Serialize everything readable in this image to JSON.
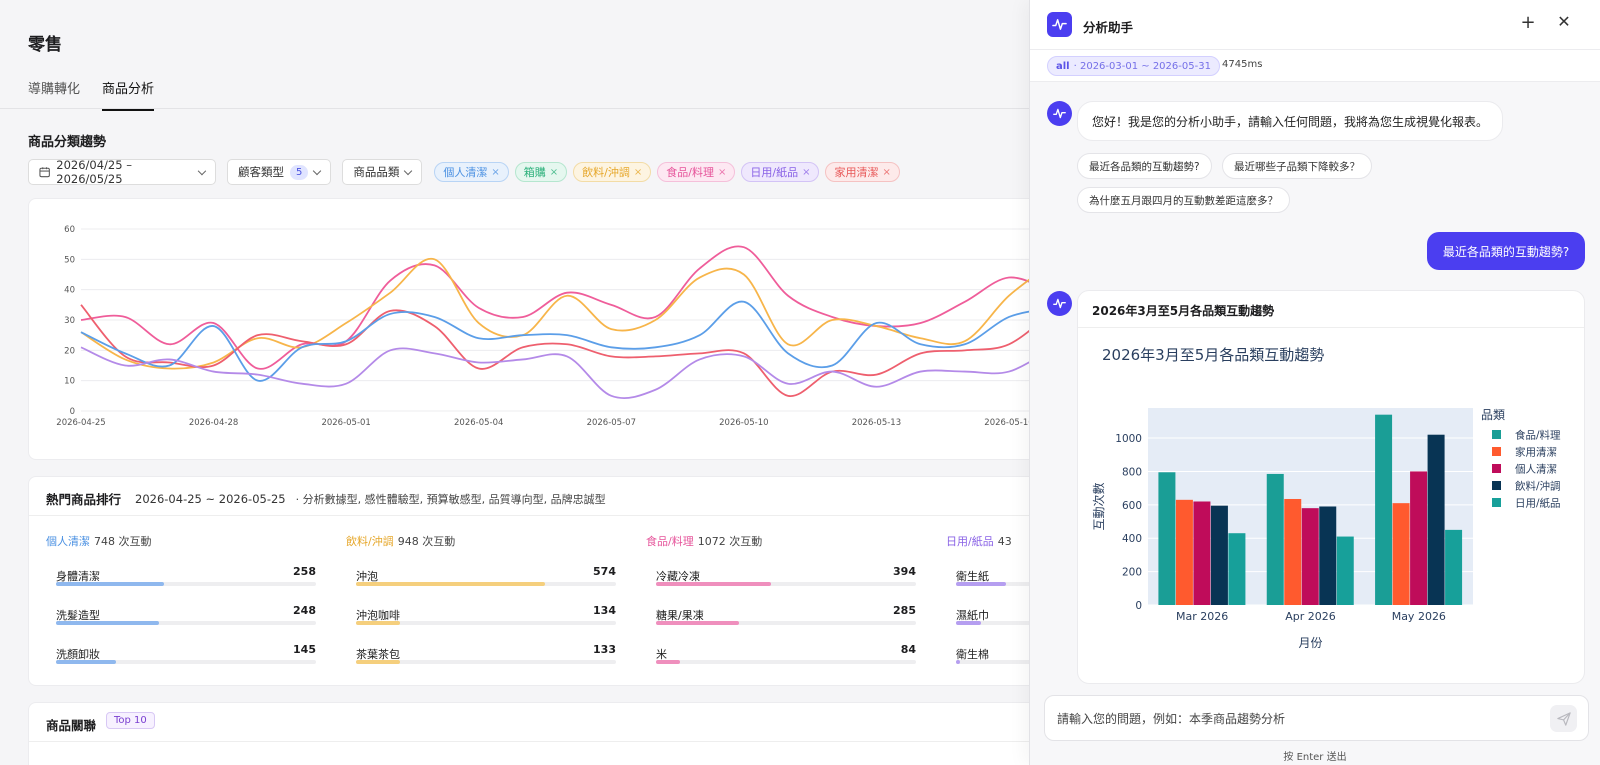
{
  "page": {
    "title": "零售",
    "tabs": [
      {
        "label": "導購轉化"
      },
      {
        "label": "商品分析",
        "active": true
      }
    ],
    "section_title": "商品分類趨勢"
  },
  "filters": {
    "date_range": "2026/04/25 – 2026/05/25",
    "customer_type_label": "顧客類型",
    "customer_type_count": "5",
    "category_label": "商品品類",
    "chips": [
      {
        "label": "個人清潔",
        "color": "#4a90e2",
        "bg": "#e8f1fc",
        "border": "#b8d4f5"
      },
      {
        "label": "箱購",
        "color": "#2bb07a",
        "bg": "#e5f7ef",
        "border": "#b5e6cf"
      },
      {
        "label": "飲料/沖調",
        "color": "#e6a72a",
        "bg": "#fdf4e1",
        "border": "#f3dca6"
      },
      {
        "label": "食品/料理",
        "color": "#e6559b",
        "bg": "#fde8f2",
        "border": "#f5c0da"
      },
      {
        "label": "日用/紙品",
        "color": "#8a63e6",
        "bg": "#efe8fd",
        "border": "#d3c3f6"
      },
      {
        "label": "家用清潔",
        "color": "#e85858",
        "bg": "#fdeaea",
        "border": "#f5c2c2"
      }
    ]
  },
  "trend_chart": {
    "type": "line",
    "x": [
      "2026-04-25",
      "2026-04-26",
      "2026-04-27",
      "2026-04-28",
      "2026-04-29",
      "2026-04-30",
      "2026-05-01",
      "2026-05-02",
      "2026-05-03",
      "2026-05-04",
      "2026-05-05",
      "2026-05-06",
      "2026-05-07",
      "2026-05-08",
      "2026-05-09",
      "2026-05-10",
      "2026-05-11",
      "2026-05-12",
      "2026-05-13",
      "2026-05-14",
      "2026-05-15",
      "2026-05-16",
      "2026-05-17"
    ],
    "x_ticks": [
      "2026-04-25",
      "2026-04-28",
      "2026-05-01",
      "2026-05-04",
      "2026-05-07",
      "2026-05-10",
      "2026-05-13",
      "2026-05-16"
    ],
    "y_ticks": [
      0,
      10,
      20,
      30,
      40,
      50,
      60
    ],
    "ylim": [
      0,
      60
    ],
    "series": [
      {
        "color": "#ef5d9a",
        "values": [
          30,
          31,
          22,
          29,
          14,
          22,
          23,
          43,
          48,
          34,
          31,
          39,
          35,
          31,
          47,
          54,
          38,
          31,
          28,
          29,
          36,
          44,
          39
        ]
      },
      {
        "color": "#f7b54a",
        "values": [
          26,
          17,
          14,
          16,
          24,
          21,
          29,
          39,
          50,
          29,
          25,
          38,
          27,
          30,
          44,
          45,
          22,
          30,
          28,
          24,
          23,
          38,
          49
        ]
      },
      {
        "color": "#ee5f6e",
        "values": [
          35,
          18,
          16,
          15,
          25,
          23,
          22,
          33,
          28,
          14,
          21,
          22,
          18,
          18,
          19,
          19,
          5,
          13,
          12,
          19,
          20,
          22,
          33
        ]
      },
      {
        "color": "#5b9ee8",
        "values": [
          26,
          19,
          15,
          28,
          10,
          21,
          23,
          32,
          31,
          24,
          25,
          25,
          21,
          21,
          25,
          36,
          19,
          15,
          29,
          22,
          22,
          31,
          34
        ]
      },
      {
        "color": "#b48ae8",
        "values": [
          21,
          15,
          17,
          13,
          12,
          9,
          9,
          20,
          19,
          16,
          17,
          18,
          5,
          7,
          17,
          18,
          9,
          13,
          8,
          13,
          13,
          13,
          21
        ]
      }
    ]
  },
  "ranking": {
    "title": "熱門商品排行",
    "range": "2026-04-25 ~ 2026-05-25",
    "segments": "· 分析數據型, 感性體驗型, 預算敏感型, 品質導向型, 品牌忠誠型",
    "columns": [
      {
        "name": "個人清潔",
        "color": "#4a90e2",
        "bar": "#8fb8ee",
        "total": "748 次互動",
        "items": [
          {
            "name": "身體清潔",
            "value": 258
          },
          {
            "name": "洗髮造型",
            "value": 248
          },
          {
            "name": "洗顏卸妝",
            "value": 145
          }
        ]
      },
      {
        "name": "飲料/沖調",
        "color": "#e6a72a",
        "bar": "#f5cf7d",
        "total": "948 次互動",
        "items": [
          {
            "name": "沖泡",
            "value": 574
          },
          {
            "name": "沖泡咖啡",
            "value": 134
          },
          {
            "name": "茶葉茶包",
            "value": 133
          }
        ]
      },
      {
        "name": "食品/料理",
        "color": "#e6559b",
        "bar": "#ef8fbd",
        "total": "1072 次互動",
        "items": [
          {
            "name": "冷藏冷凍",
            "value": 394
          },
          {
            "name": "糖果/果凍",
            "value": 285
          },
          {
            "name": "米",
            "value": 84
          }
        ]
      },
      {
        "name": "日用/紙品",
        "color": "#8a63e6",
        "bar": "#b59ef0",
        "total": "43",
        "items": [
          {
            "name": "衛生紙",
            "value": null
          },
          {
            "name": "濕紙巾",
            "value": null
          },
          {
            "name": "衛生棉",
            "value": null
          }
        ]
      }
    ]
  },
  "association": {
    "title": "商品關聯",
    "badge": "Top 10"
  },
  "assistant": {
    "title": "分析助手",
    "meta_scope": "all",
    "meta_range": "· 2026-03-01 ~ 2026-05-31",
    "meta_ms": "4745ms",
    "greeting": "您好！我是您的分析小助手，請輸入任何問題，我將為您生成視覺化報表。",
    "suggestions": [
      "最近各品類的互動趨勢?",
      "最近哪些子品類下降較多？",
      "為什麼五月跟四月的互動數差距這麼多？"
    ],
    "user_message": "最近各品類的互動趨勢?",
    "result_title": "2026年3月至5月各品類互動趨勢",
    "input_placeholder": "請輸入您的問題，例如：本季商品趨勢分析",
    "hint": "按 Enter 送出"
  },
  "chart_data": {
    "type": "bar",
    "title": "2026年3月至5月各品類互動趨勢",
    "xlabel": "月份",
    "ylabel": "互動次數",
    "categories": [
      "Mar 2026",
      "Apr 2026",
      "May 2026"
    ],
    "ylim": [
      0,
      1180
    ],
    "y_ticks": [
      0,
      200,
      400,
      600,
      800,
      1000
    ],
    "legend_title": "品類",
    "legend_position": "right",
    "series": [
      {
        "name": "食品/料理",
        "color": "#1a9e96",
        "values": [
          795,
          785,
          1140
        ]
      },
      {
        "name": "家用清潔",
        "color": "#ff5a2e",
        "values": [
          630,
          635,
          610
        ]
      },
      {
        "name": "個人清潔",
        "color": "#bf0c5a",
        "values": [
          620,
          580,
          800
        ]
      },
      {
        "name": "飲料/沖調",
        "color": "#083454",
        "values": [
          595,
          590,
          1020
        ]
      },
      {
        "name": "日用/紙品",
        "color": "#17a09a",
        "values": [
          430,
          410,
          450
        ]
      }
    ]
  }
}
